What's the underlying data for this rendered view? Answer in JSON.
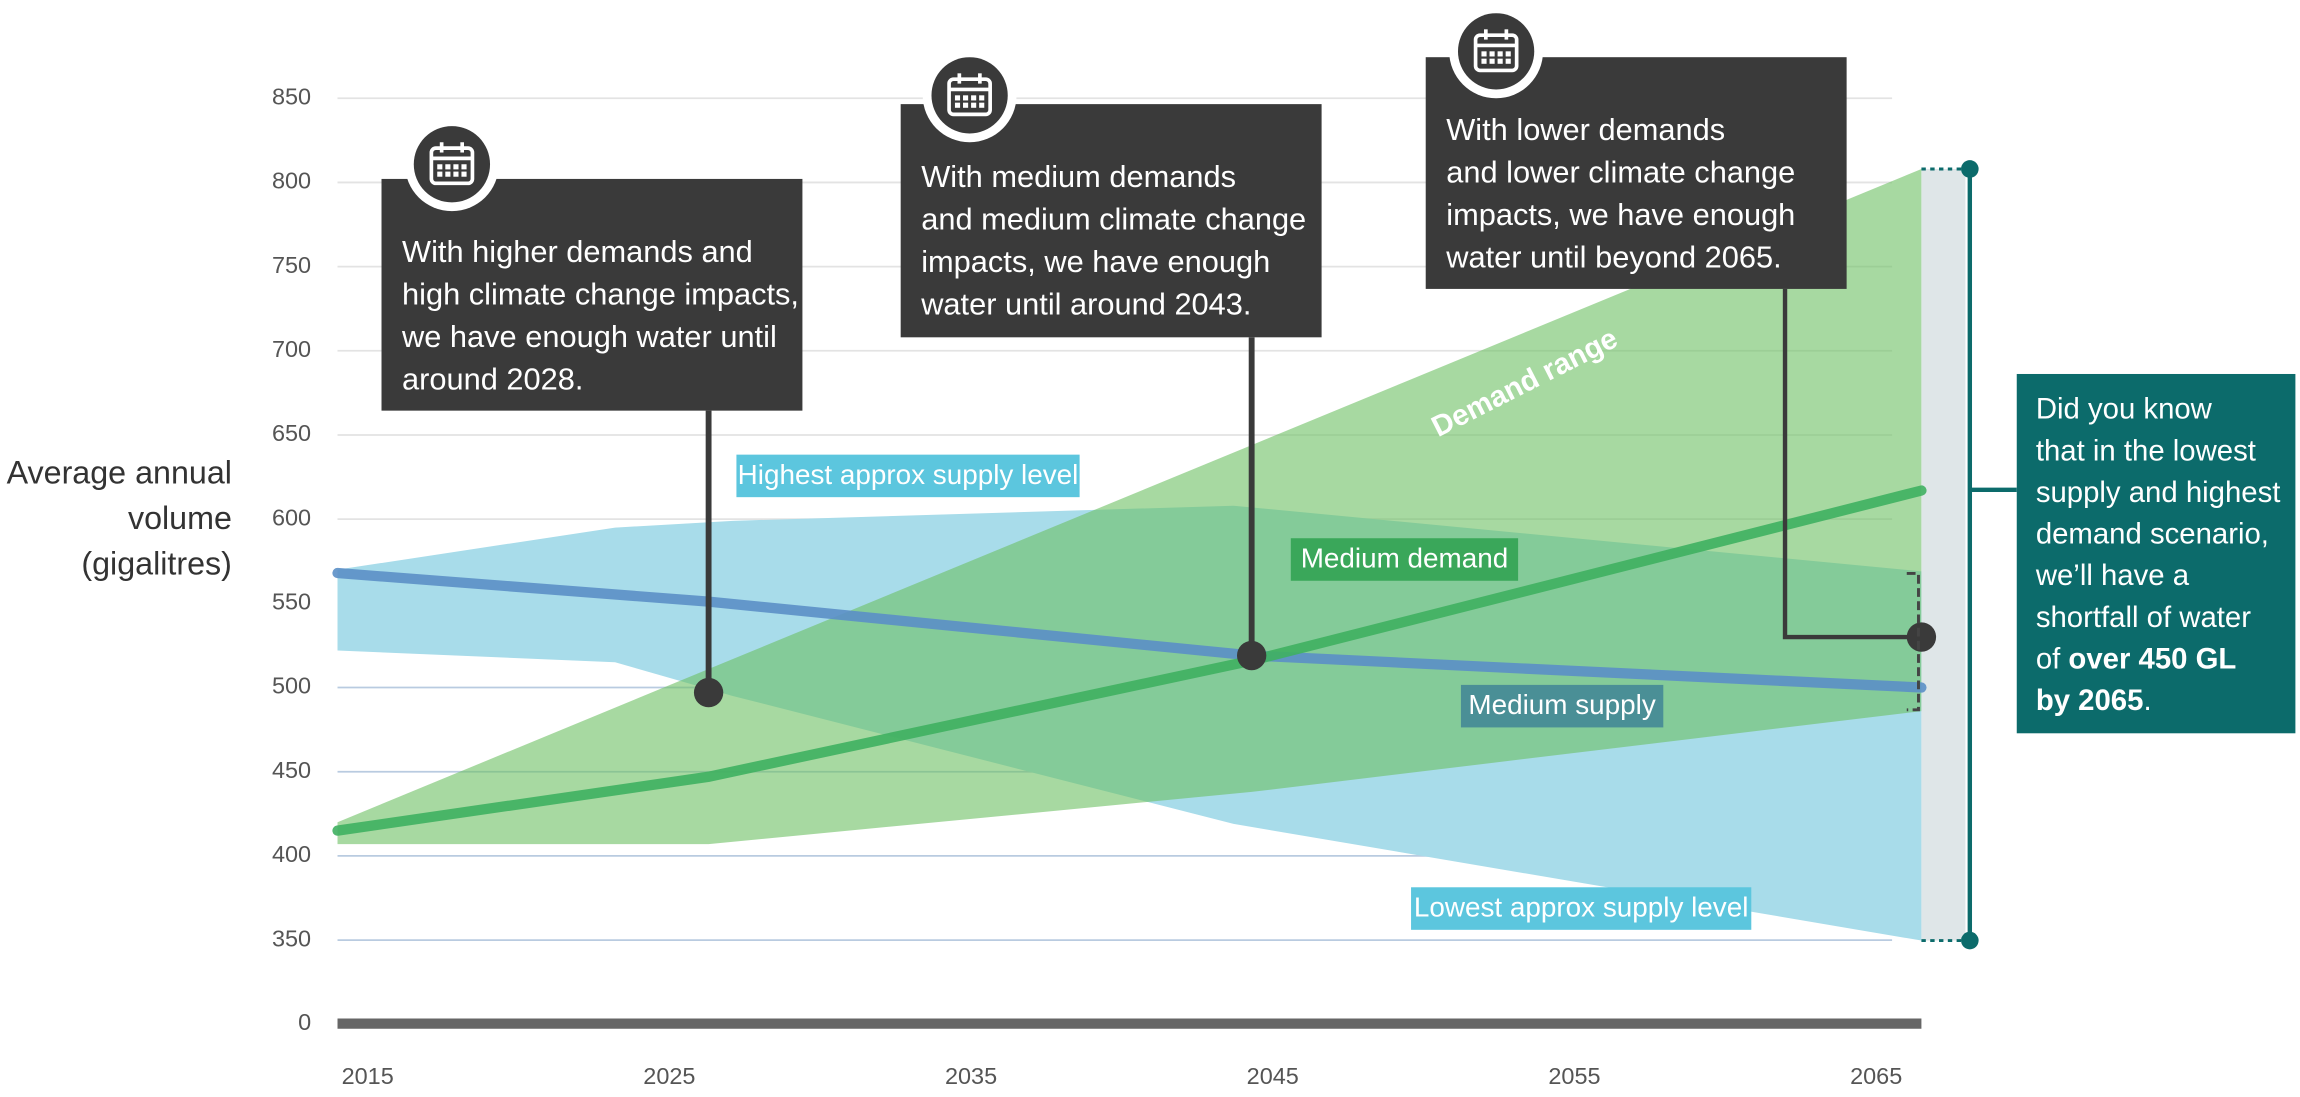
{
  "chart_data": {
    "type": "area",
    "ylabel_lines": [
      "Average annual",
      "volume",
      "(gigalitres)"
    ],
    "xlim": [
      2014,
      2066.5
    ],
    "xticks": [
      2015,
      2025,
      2035,
      2045,
      2055,
      2065
    ],
    "ylim": [
      0,
      850
    ],
    "yticks": [
      0,
      350,
      400,
      450,
      500,
      550,
      600,
      650,
      700,
      750,
      800,
      850
    ],
    "grid": true,
    "areas": [
      {
        "name": "Supply range",
        "color": "#a8dcea",
        "x": [
          2014,
          2023.2,
          2027.1,
          2043.7,
          2066.5
        ],
        "upper": [
          570,
          595,
          599,
          608,
          569
        ],
        "lower": [
          522,
          515,
          495,
          419,
          348
        ]
      },
      {
        "name": "Demand range",
        "color": "#6cbf62",
        "x": [
          2014,
          2026.3,
          2044.3,
          2066.5
        ],
        "upper": [
          420,
          511,
          644,
          808
        ],
        "lower": [
          407,
          407,
          438,
          486
        ]
      }
    ],
    "series": [
      {
        "name": "Medium supply",
        "color": "#5b8fc7",
        "x": [
          2014,
          2026.3,
          2044.3,
          2066.5
        ],
        "values": [
          568,
          551,
          519,
          500
        ]
      },
      {
        "name": "Medium demand",
        "color": "#3fb060",
        "x": [
          2014,
          2026.3,
          2044.3,
          2066.5
        ],
        "values": [
          415,
          447,
          516,
          617
        ]
      }
    ],
    "annotations": [
      {
        "text": "Highest approx supply level",
        "color": "#5cc6de"
      },
      {
        "text": "Medium demand",
        "color": "#3aa75a"
      },
      {
        "text": "Medium supply",
        "color": "#4a8f96"
      },
      {
        "text": "Lowest approx supply level",
        "color": "#5cc6de"
      },
      {
        "text": "Demand range",
        "color": "#ffffff"
      }
    ],
    "callouts": [
      {
        "lines": [
          "With higher demands and",
          "high climate change impacts,",
          "we have enough water until",
          "around 2028."
        ],
        "point": [
          2026.3,
          497
        ]
      },
      {
        "lines": [
          "With medium demands",
          "and medium climate change",
          "impacts, we have enough",
          "water until around 2043."
        ],
        "point": [
          2044.3,
          519
        ]
      },
      {
        "lines": [
          "With lower demands",
          "and lower climate change",
          "impacts, we have enough",
          "water until beyond 2065."
        ],
        "point": [
          2066.5,
          530
        ]
      }
    ],
    "info": {
      "color": "#0c6b6b",
      "lines": [
        [
          {
            "text": "Did you know"
          }
        ],
        [
          {
            "text": "that in the lowest"
          }
        ],
        [
          {
            "text": "supply and highest"
          }
        ],
        [
          {
            "text": "demand scenario,"
          }
        ],
        [
          {
            "text": "we’ll have a"
          }
        ],
        [
          {
            "text": "shortfall of water"
          }
        ],
        [
          {
            "text": "of "
          },
          {
            "text": "over 450 GL",
            "bold": true
          }
        ],
        [
          {
            "text": "by 2065",
            "bold": true
          },
          {
            "text": "."
          }
        ]
      ]
    }
  }
}
